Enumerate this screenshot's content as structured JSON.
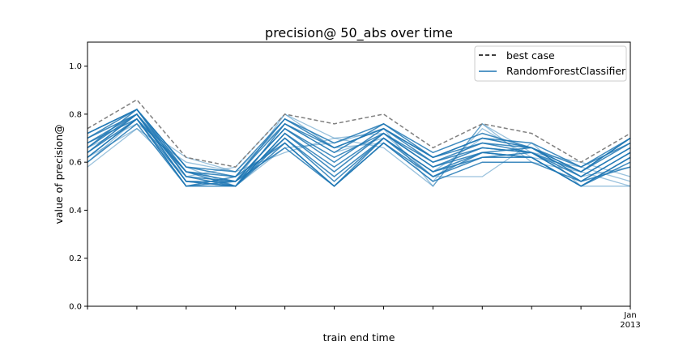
{
  "chart_data": {
    "type": "line",
    "title": "precision@ 50_abs over time",
    "xlabel": "train end time",
    "ylabel": "value of precision@",
    "ylim": [
      0,
      1.1
    ],
    "yticks": [
      "0.0",
      "0.2",
      "0.4",
      "0.6",
      "0.8",
      "1.0"
    ],
    "x_tick_labels": [
      "",
      "",
      "",
      "",
      "",
      "",
      "",
      "",
      "",
      "",
      "",
      "Jan\n2013"
    ],
    "legend_position": "upper-right",
    "grid": false,
    "colors": {
      "best": "#808080",
      "model": "#1f77b4"
    },
    "best_case": {
      "name": "best case",
      "values": [
        0.74,
        0.86,
        0.62,
        0.58,
        0.8,
        0.76,
        0.8,
        0.66,
        0.76,
        0.72,
        0.6,
        0.72
      ]
    },
    "model_series_name": "RandomForestClassifier",
    "series": [
      {
        "values": [
          0.72,
          0.82,
          0.58,
          0.56,
          0.78,
          0.68,
          0.76,
          0.64,
          0.72,
          0.66,
          0.58,
          0.7
        ]
      },
      {
        "values": [
          0.7,
          0.82,
          0.56,
          0.54,
          0.76,
          0.66,
          0.74,
          0.62,
          0.7,
          0.66,
          0.56,
          0.68
        ]
      },
      {
        "values": [
          0.68,
          0.8,
          0.54,
          0.52,
          0.74,
          0.62,
          0.72,
          0.6,
          0.68,
          0.64,
          0.54,
          0.66
        ]
      },
      {
        "values": [
          0.66,
          0.8,
          0.52,
          0.5,
          0.72,
          0.58,
          0.72,
          0.58,
          0.66,
          0.64,
          0.52,
          0.64
        ]
      },
      {
        "values": [
          0.64,
          0.78,
          0.52,
          0.5,
          0.7,
          0.54,
          0.7,
          0.56,
          0.64,
          0.62,
          0.5,
          0.62
        ]
      },
      {
        "values": [
          0.62,
          0.78,
          0.5,
          0.5,
          0.68,
          0.5,
          0.7,
          0.54,
          0.62,
          0.62,
          0.5,
          0.6
        ]
      },
      {
        "values": [
          0.6,
          0.76,
          0.5,
          0.52,
          0.66,
          0.5,
          0.68,
          0.52,
          0.6,
          0.6,
          0.52,
          0.58
        ]
      },
      {
        "values": [
          0.7,
          0.8,
          0.56,
          0.52,
          0.74,
          0.6,
          0.74,
          0.6,
          0.66,
          0.64,
          0.56,
          0.7
        ]
      },
      {
        "values": [
          0.66,
          0.82,
          0.54,
          0.5,
          0.72,
          0.56,
          0.72,
          0.58,
          0.64,
          0.66,
          0.54,
          0.66
        ]
      },
      {
        "values": [
          0.64,
          0.8,
          0.52,
          0.52,
          0.7,
          0.52,
          0.7,
          0.56,
          0.62,
          0.64,
          0.52,
          0.64
        ]
      },
      {
        "values": [
          0.62,
          0.78,
          0.5,
          0.54,
          0.68,
          0.5,
          0.68,
          0.54,
          0.64,
          0.62,
          0.5,
          0.62
        ]
      },
      {
        "values": [
          0.68,
          0.78,
          0.56,
          0.5,
          0.76,
          0.64,
          0.76,
          0.62,
          0.7,
          0.68,
          0.58,
          0.68
        ]
      },
      {
        "values": [
          0.72,
          0.82,
          0.58,
          0.54,
          0.78,
          0.66,
          0.74,
          0.62,
          0.68,
          0.66,
          0.56,
          0.7
        ]
      }
    ],
    "light_series": [
      {
        "values": [
          0.58,
          0.74,
          0.54,
          0.58,
          0.8,
          0.7,
          0.66,
          0.5,
          0.76,
          0.64,
          0.6,
          0.54
        ]
      },
      {
        "values": [
          0.66,
          0.76,
          0.62,
          0.56,
          0.64,
          0.7,
          0.72,
          0.54,
          0.54,
          0.68,
          0.5,
          0.5
        ]
      },
      {
        "values": [
          0.6,
          0.78,
          0.56,
          0.52,
          0.8,
          0.66,
          0.68,
          0.52,
          0.74,
          0.62,
          0.58,
          0.52
        ]
      },
      {
        "values": [
          0.64,
          0.8,
          0.58,
          0.5,
          0.66,
          0.68,
          0.74,
          0.5,
          0.76,
          0.6,
          0.56,
          0.5
        ]
      },
      {
        "values": [
          0.62,
          0.74,
          0.6,
          0.56,
          0.76,
          0.64,
          0.7,
          0.56,
          0.7,
          0.66,
          0.54,
          0.58
        ]
      }
    ]
  }
}
